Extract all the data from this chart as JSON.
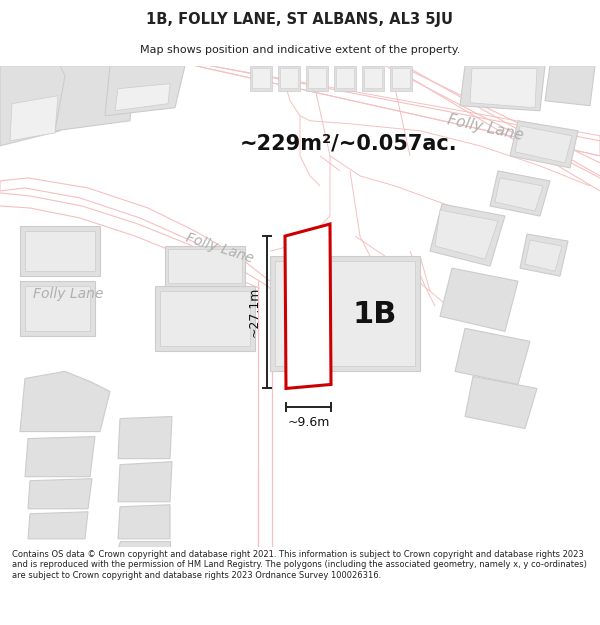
{
  "title_line1": "1B, FOLLY LANE, ST ALBANS, AL3 5JU",
  "title_line2": "Map shows position and indicative extent of the property.",
  "area_text": "~229m²/~0.057ac.",
  "label_1b": "1B",
  "dim_height": "~27.1m",
  "dim_width": "~9.6m",
  "label_folly_lane_left": "Folly Lane",
  "label_folly_lane_center": "Folly Lane",
  "label_folly_lane_right": "Folly Lane",
  "footer_text": "Contains OS data © Crown copyright and database right 2021. This information is subject to Crown copyright and database rights 2023 and is reproduced with the permission of HM Land Registry. The polygons (including the associated geometry, namely x, y co-ordinates) are subject to Crown copyright and database rights 2023 Ordnance Survey 100026316.",
  "bg_color": "#ffffff",
  "road_outline": "#f5c0c0",
  "building_fill": "#e0e0e0",
  "building_edge": "#cccccc",
  "highlight_red": "#cc0000",
  "dim_color": "#222222",
  "text_gray": "#b0b0b0",
  "text_dark": "#222222",
  "map_bg": "#ffffff"
}
